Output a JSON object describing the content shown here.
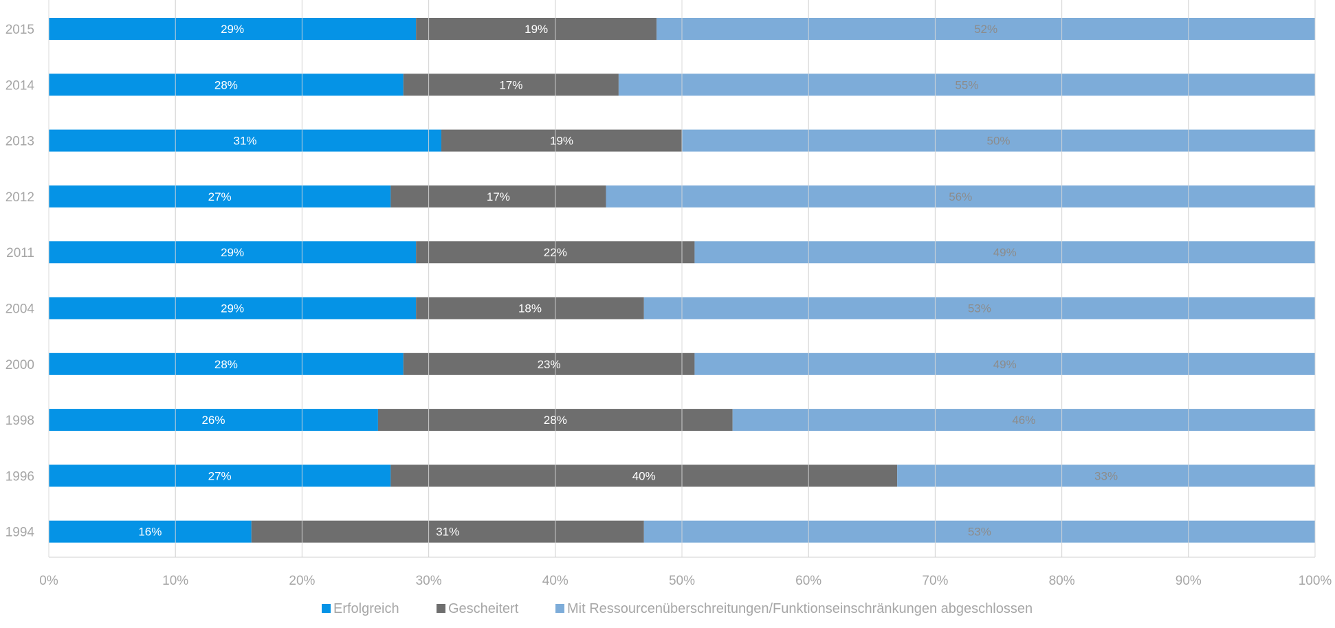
{
  "chart_data": {
    "type": "bar",
    "orientation": "horizontal",
    "stacked": "percent",
    "categories": [
      "2015",
      "2014",
      "2013",
      "2012",
      "2011",
      "2004",
      "2000",
      "1998",
      "1996",
      "1994"
    ],
    "series": [
      {
        "name": "Erfolgreich",
        "color": "#0593e6",
        "label_color": "#ffffff",
        "values": [
          29,
          28,
          31,
          27,
          29,
          29,
          28,
          26,
          27,
          16
        ],
        "labels": [
          "29%",
          "28%",
          "31%",
          "27%",
          "29%",
          "29%",
          "28%",
          "26%",
          "27%",
          "16%"
        ]
      },
      {
        "name": "Gescheitert",
        "color": "#6e6e6e",
        "label_color": "#ffffff",
        "values": [
          19,
          17,
          19,
          17,
          22,
          18,
          23,
          28,
          40,
          31
        ],
        "labels": [
          "19%",
          "17%",
          "19%",
          "17%",
          "22%",
          "18%",
          "23%",
          "28%",
          "40%",
          "31%"
        ]
      },
      {
        "name": "Mit Ressourcenüberschreitungen/Funktionseinschränkungen abgeschlossen",
        "color": "#7dacd9",
        "label_color": "#8c8c8c",
        "values": [
          52,
          55,
          50,
          56,
          49,
          53,
          49,
          46,
          33,
          53
        ],
        "labels": [
          "52%",
          "55%",
          "50%",
          "56%",
          "49%",
          "53%",
          "49%",
          "46%",
          "33%",
          "53%"
        ]
      }
    ],
    "x_ticks": [
      "0%",
      "10%",
      "20%",
      "30%",
      "40%",
      "50%",
      "60%",
      "70%",
      "80%",
      "90%",
      "100%"
    ],
    "xlim": [
      0,
      100
    ],
    "grid": true,
    "legend_position": "bottom"
  }
}
